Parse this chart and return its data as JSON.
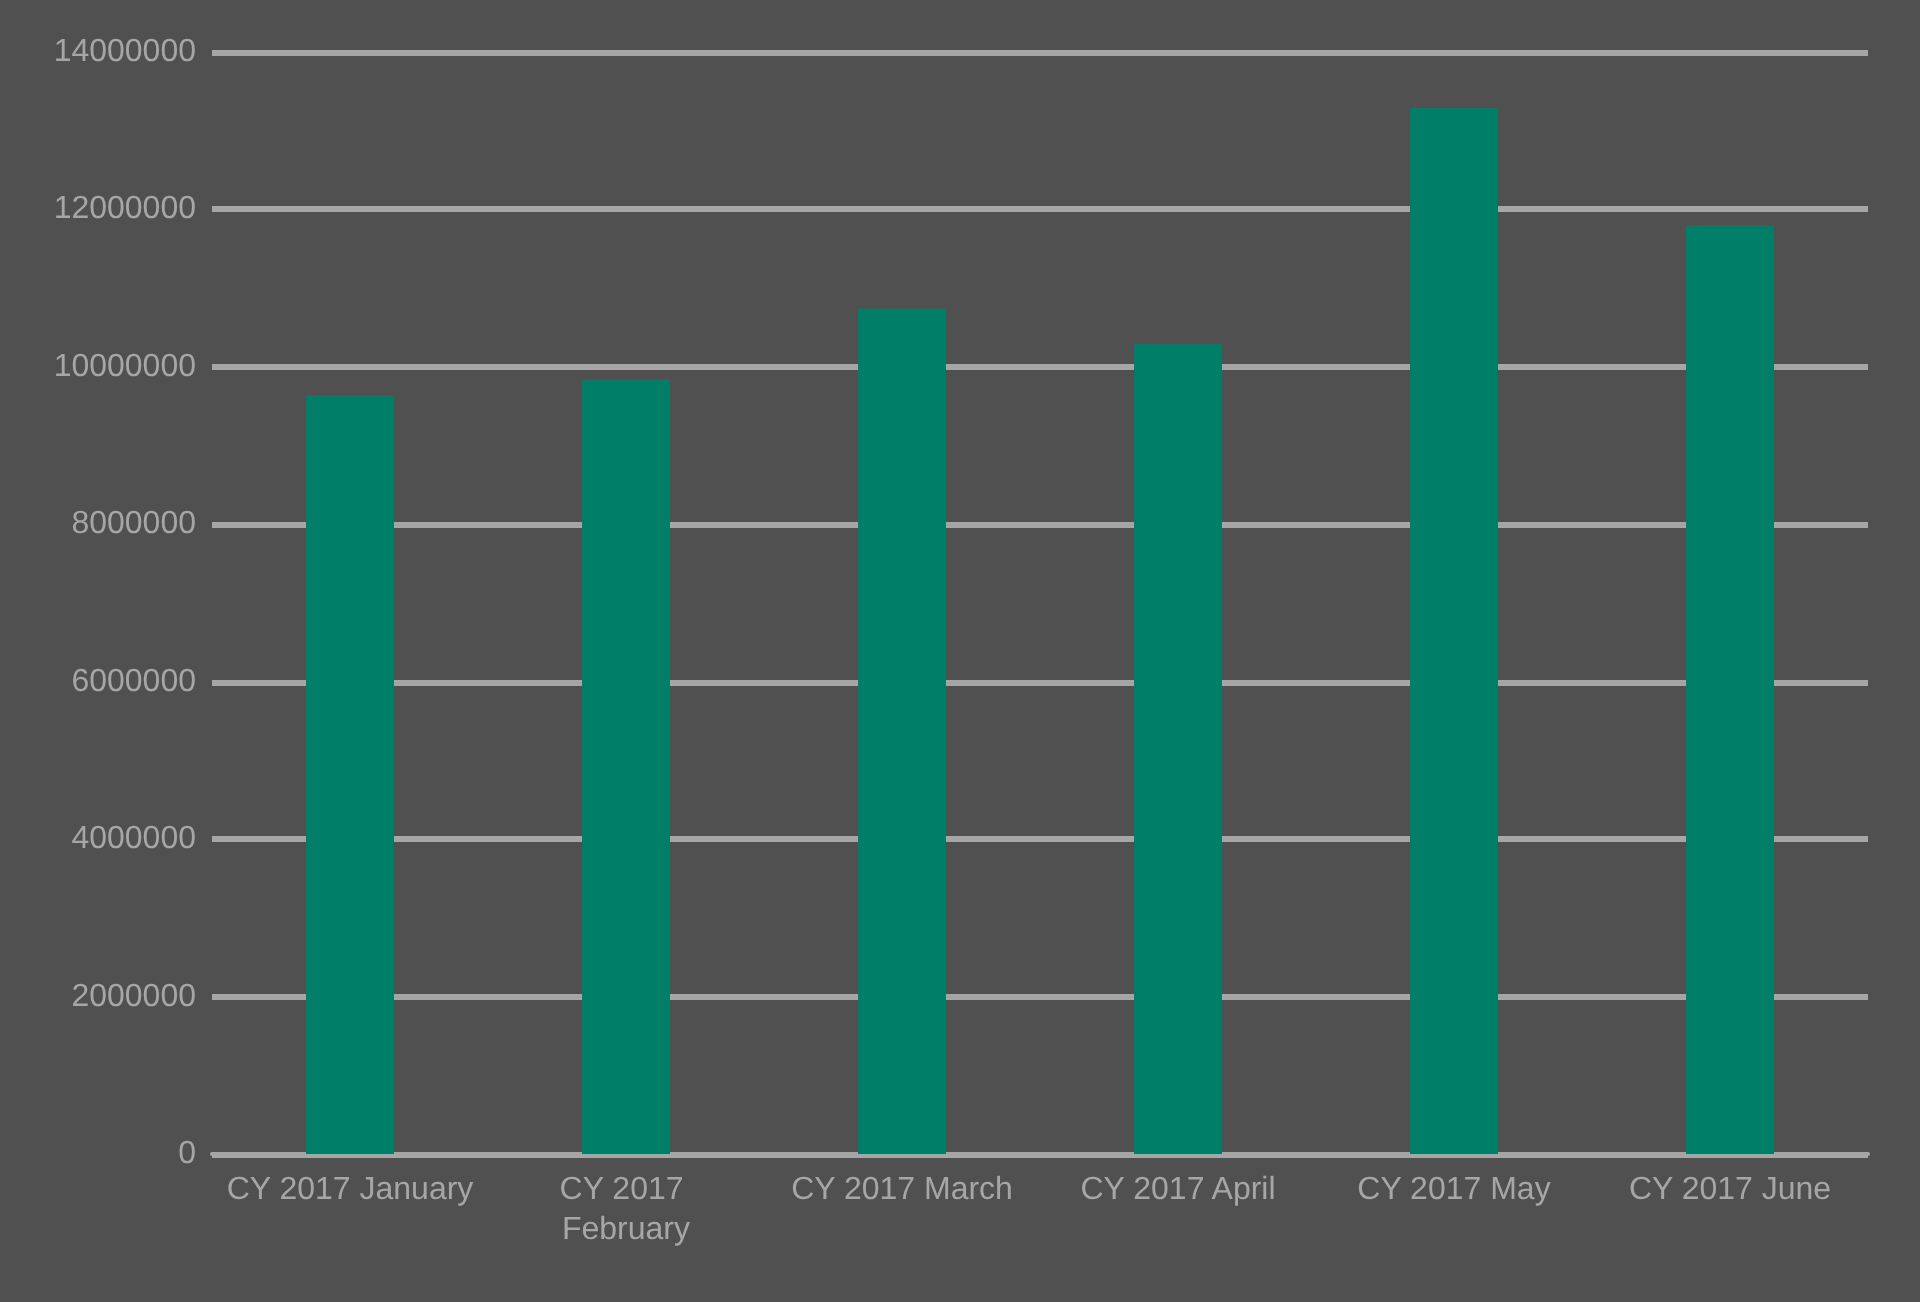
{
  "chart_data": {
    "type": "bar",
    "categories": [
      "CY 2017 January",
      "CY 2017 February",
      "CY 2017 March",
      "CY 2017 April",
      "CY 2017 May",
      "CY 2017 June"
    ],
    "values": [
      9640000,
      9840000,
      10740000,
      10290000,
      13290000,
      11800000
    ],
    "color": "#007e68",
    "ylim": [
      0,
      14000000
    ],
    "yticks": [
      0,
      2000000,
      4000000,
      6000000,
      8000000,
      10000000,
      12000000,
      14000000
    ],
    "grid": true
  }
}
